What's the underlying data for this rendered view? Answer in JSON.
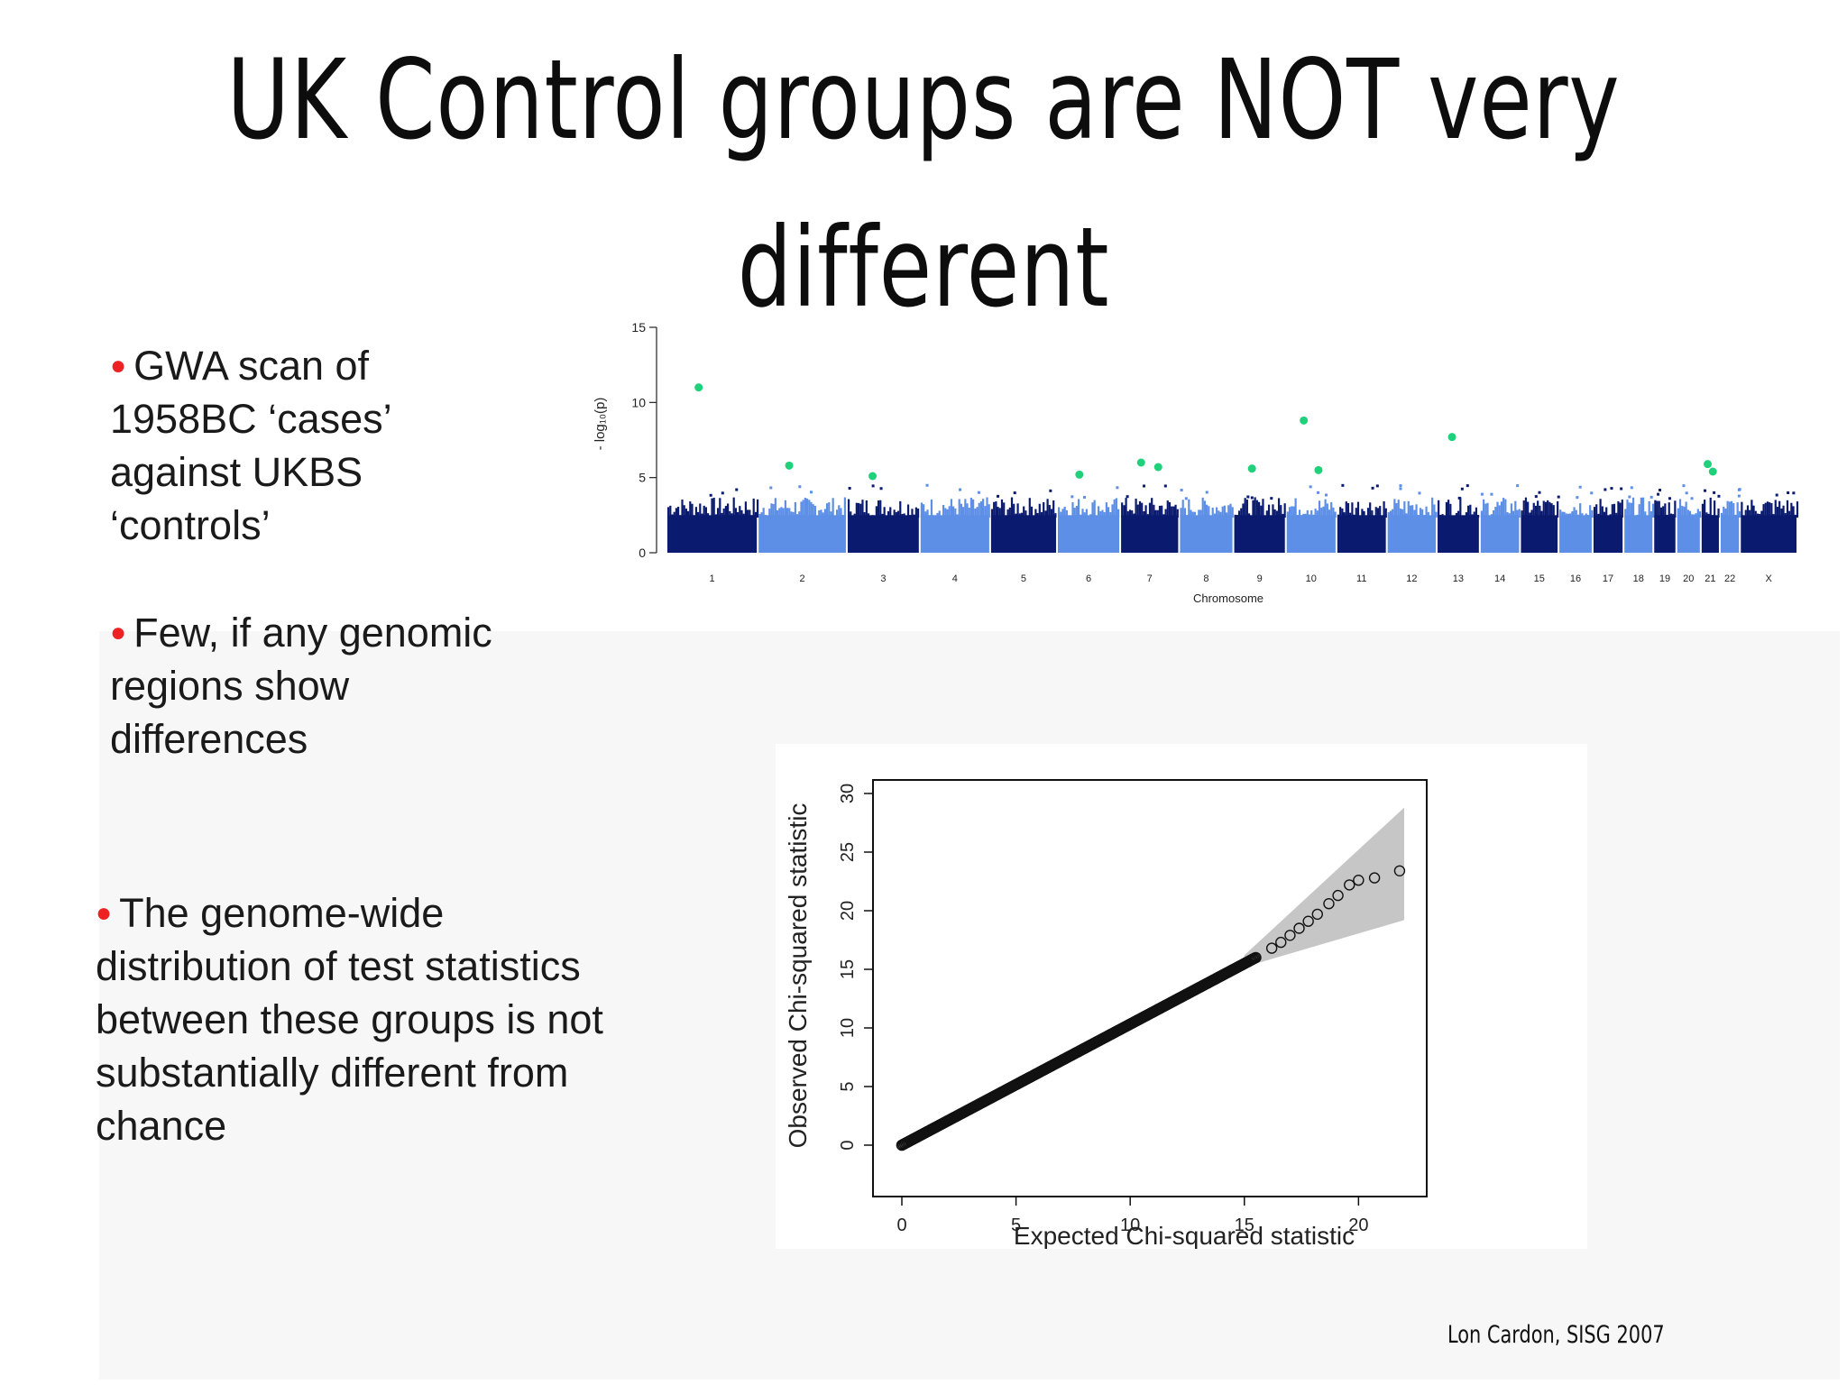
{
  "slide": {
    "title_line1": "UK Control groups are NOT very",
    "title_line2": "different",
    "credit": "Lon Cardon, SISG 2007"
  },
  "bullets": [
    {
      "lines": [
        "GWA scan of",
        "1958BC ‘cases’",
        "against UKBS",
        "‘controls’"
      ]
    },
    {
      "lines": [
        "Few, if any genomic",
        "regions show",
        "differences"
      ]
    },
    {
      "lines": [
        "The genome-wide",
        "distribution of test statistics",
        "between these groups is not",
        "substantially different from",
        "chance"
      ]
    }
  ],
  "colors": {
    "bullet": "#e22222",
    "dark_blue": "#0a1a6e",
    "light_blue": "#5d8fe6",
    "highlight_green": "#1fd17a",
    "ci_band": "#c6c6c6"
  },
  "chart_data": [
    {
      "type": "scatter",
      "subtype": "manhattan",
      "xlabel": "Chromosome",
      "ylabel": "- log₁₀(p)",
      "ylim": [
        0,
        15
      ],
      "yticks": [
        0,
        5,
        10,
        15
      ],
      "chromosomes": [
        "1",
        "2",
        "3",
        "4",
        "5",
        "6",
        "7",
        "8",
        "9",
        "10",
        "11",
        "12",
        "13",
        "14",
        "15",
        "16",
        "17",
        "18",
        "19",
        "20",
        "21",
        "22",
        "X"
      ],
      "typical_max": 4,
      "highlighted_points": [
        {
          "chr": "1",
          "y": 11.0
        },
        {
          "chr": "2",
          "y": 5.8
        },
        {
          "chr": "3",
          "y": 5.1
        },
        {
          "chr": "6",
          "y": 5.2
        },
        {
          "chr": "7",
          "y": 6.0
        },
        {
          "chr": "7",
          "y": 5.7
        },
        {
          "chr": "9",
          "y": 5.6
        },
        {
          "chr": "10",
          "y": 8.8
        },
        {
          "chr": "10",
          "y": 5.5
        },
        {
          "chr": "13",
          "y": 7.7
        },
        {
          "chr": "21",
          "y": 5.9
        },
        {
          "chr": "21",
          "y": 5.4
        }
      ]
    },
    {
      "type": "scatter",
      "subtype": "qq-plot",
      "xlabel": "Expected Chi-squared statistic",
      "ylabel": "Observed Chi-squared statistic",
      "xlim": [
        0,
        22
      ],
      "ylim": [
        0,
        30
      ],
      "xticks": [
        0,
        5,
        10,
        15,
        20
      ],
      "yticks": [
        0,
        5,
        10,
        15,
        20,
        25,
        30
      ],
      "dense_line": {
        "x": [
          0,
          15.5
        ],
        "y": [
          0,
          16
        ]
      },
      "tail_points": [
        {
          "x": 16.2,
          "y": 16.8
        },
        {
          "x": 16.6,
          "y": 17.3
        },
        {
          "x": 17.0,
          "y": 17.9
        },
        {
          "x": 17.4,
          "y": 18.5
        },
        {
          "x": 17.8,
          "y": 19.1
        },
        {
          "x": 18.2,
          "y": 19.7
        },
        {
          "x": 18.7,
          "y": 20.6
        },
        {
          "x": 19.1,
          "y": 21.3
        },
        {
          "x": 19.6,
          "y": 22.2
        },
        {
          "x": 20.0,
          "y": 22.6
        },
        {
          "x": 20.7,
          "y": 22.8
        },
        {
          "x": 21.8,
          "y": 23.4
        }
      ],
      "confidence_band": {
        "x": [
          15,
          22
        ],
        "upper": [
          16.2,
          28.8
        ],
        "lower": [
          15.2,
          19.2
        ]
      }
    }
  ]
}
